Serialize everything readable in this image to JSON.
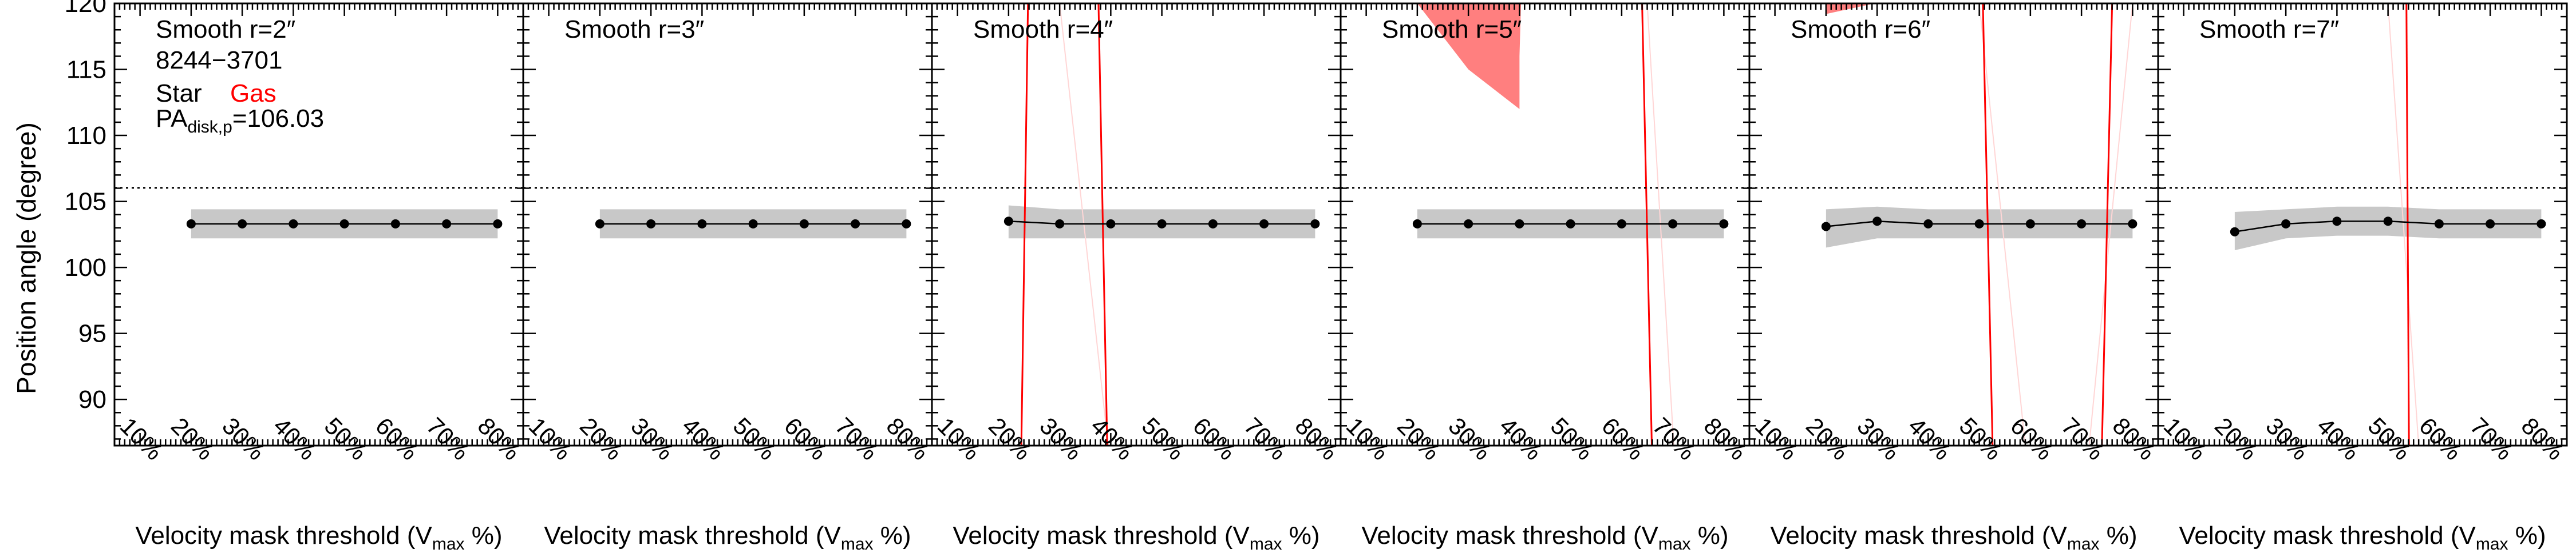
{
  "ylabel": "Position angle (degree)",
  "xlabel_prefix": "Velocity mask threshold (V",
  "xlabel_sub": "max",
  "xlabel_suffix": " %)",
  "galaxy_id": "8244−3701",
  "legend": {
    "star": "Star",
    "gas": "Gas"
  },
  "pa_label_prefix": "PA",
  "pa_label_sub": "disk,p",
  "pa_label_value": "=106.03",
  "colors": {
    "star": "#000000",
    "gas": "#ff0000",
    "gas_fill": "#ff7f7f",
    "band": "#c8c8c8",
    "ref_line": "#000000"
  },
  "chart_data": {
    "type": "line",
    "panel_count": 6,
    "x_ticks": [
      "10%",
      "20%",
      "30%",
      "40%",
      "50%",
      "60%",
      "70%",
      "80%"
    ],
    "x_tick_values": [
      10,
      20,
      30,
      40,
      50,
      60,
      70,
      80
    ],
    "xlim": [
      5,
      85
    ],
    "ylim": [
      86.5,
      120
    ],
    "y_ticks": [
      90,
      95,
      100,
      105,
      110,
      115,
      120
    ],
    "reference_line_pa": 106.03,
    "panels": [
      {
        "title": "Smooth r=2″",
        "star": {
          "x": [
            20,
            30,
            40,
            50,
            60,
            70,
            80
          ],
          "y": [
            103.3,
            103.3,
            103.3,
            103.3,
            103.3,
            103.3,
            103.3
          ],
          "band_lo": [
            102.2,
            102.2,
            102.2,
            102.2,
            102.2,
            102.2,
            102.2
          ],
          "band_hi": [
            104.4,
            104.4,
            104.4,
            104.4,
            104.4,
            104.4,
            104.4
          ]
        },
        "gas_lines": [],
        "gas_fills": []
      },
      {
        "title": "Smooth r=3″",
        "star": {
          "x": [
            20,
            30,
            40,
            50,
            60,
            70,
            80
          ],
          "y": [
            103.3,
            103.3,
            103.3,
            103.3,
            103.3,
            103.3,
            103.3
          ],
          "band_lo": [
            102.2,
            102.2,
            102.2,
            102.2,
            102.2,
            102.2,
            102.2
          ],
          "band_hi": [
            104.4,
            104.4,
            104.4,
            104.4,
            104.4,
            104.4,
            104.4
          ]
        },
        "gas_lines": [],
        "gas_fills": []
      },
      {
        "title": "Smooth r=4″",
        "star": {
          "x": [
            20,
            30,
            40,
            50,
            60,
            70,
            80
          ],
          "y": [
            103.5,
            103.3,
            103.3,
            103.3,
            103.3,
            103.3,
            103.3
          ],
          "band_lo": [
            102.2,
            102.2,
            102.2,
            102.2,
            102.2,
            102.2,
            102.2
          ],
          "band_hi": [
            104.7,
            104.4,
            104.4,
            104.4,
            104.4,
            104.4,
            104.4
          ]
        },
        "gas_lines": [
          {
            "x": [
              22.5,
              23.8
            ],
            "y": [
              86.5,
              120
            ]
          },
          {
            "x": [
              37.6,
              39.3
            ],
            "y": [
              120,
              86.5
            ]
          }
        ],
        "gas_faint": [
          {
            "x": [
              30,
              39.5
            ],
            "y": [
              120,
              86.5
            ]
          }
        ],
        "gas_fills": []
      },
      {
        "title": "Smooth r=5″",
        "star": {
          "x": [
            20,
            30,
            40,
            50,
            60,
            70,
            80
          ],
          "y": [
            103.3,
            103.3,
            103.3,
            103.3,
            103.3,
            103.3,
            103.3
          ],
          "band_lo": [
            102.2,
            102.2,
            102.2,
            102.2,
            102.2,
            102.2,
            102.2
          ],
          "band_hi": [
            104.4,
            104.4,
            104.4,
            104.4,
            104.4,
            104.4,
            104.4
          ]
        },
        "gas_lines": [
          {
            "x": [
              64.0,
              65.9
            ],
            "y": [
              120,
              86.5
            ]
          }
        ],
        "gas_faint": [
          {
            "x": [
              65.0,
              70.2
            ],
            "y": [
              120,
              86.5
            ]
          }
        ],
        "gas_fills": [
          {
            "x": [
              20,
              30,
              40,
              40,
              40.3
            ],
            "y": [
              120,
              115,
              112,
              116,
              120
            ]
          }
        ]
      },
      {
        "title": "Smooth r=6″",
        "star": {
          "x": [
            20,
            30,
            40,
            50,
            60,
            70,
            80
          ],
          "y": [
            103.1,
            103.5,
            103.3,
            103.3,
            103.3,
            103.3,
            103.3
          ],
          "band_lo": [
            101.5,
            102.2,
            102.2,
            102.2,
            102.2,
            102.2,
            102.2
          ],
          "band_hi": [
            104.4,
            104.6,
            104.4,
            104.4,
            104.4,
            104.4,
            104.4
          ]
        },
        "gas_lines": [
          {
            "x": [
              50.7,
              52.6
            ],
            "y": [
              120,
              86.5
            ]
          },
          {
            "x": [
              76.0,
              74.0
            ],
            "y": [
              120,
              86.5
            ]
          }
        ],
        "gas_faint": [
          {
            "x": [
              50,
              59
            ],
            "y": [
              120,
              86.5
            ]
          },
          {
            "x": [
              80,
              71.5
            ],
            "y": [
              120,
              86.5
            ]
          }
        ],
        "gas_fills": [
          {
            "x": [
              20,
              29.5,
              20
            ],
            "y": [
              120,
              120,
              119.2
            ]
          }
        ]
      },
      {
        "title": "Smooth r=7″",
        "star": {
          "x": [
            20,
            30,
            40,
            50,
            60,
            70,
            80
          ],
          "y": [
            102.7,
            103.3,
            103.5,
            103.5,
            103.3,
            103.3,
            103.3
          ],
          "band_lo": [
            101.3,
            102.2,
            102.4,
            102.4,
            102.2,
            102.2,
            102.2
          ],
          "band_hi": [
            104.2,
            104.4,
            104.6,
            104.6,
            104.4,
            104.4,
            104.4
          ]
        },
        "gas_lines": [
          {
            "x": [
              53.6,
              54.1
            ],
            "y": [
              120,
              86.5
            ]
          }
        ],
        "gas_faint": [
          {
            "x": [
              50,
              56
            ],
            "y": [
              120,
              86.5
            ]
          }
        ],
        "gas_fills": []
      }
    ]
  }
}
